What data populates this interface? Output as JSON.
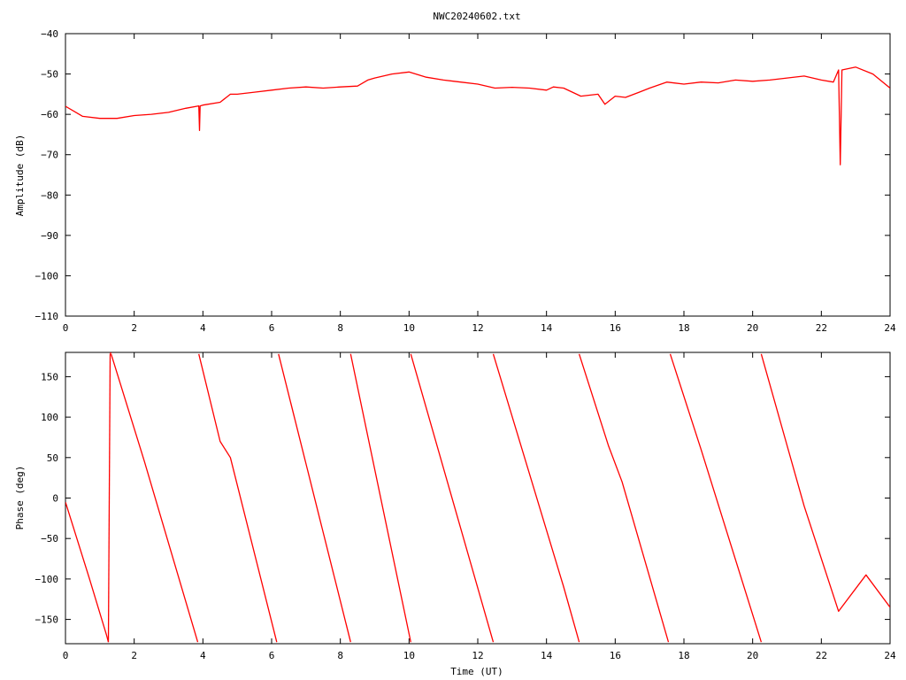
{
  "title": "NWC20240602.txt",
  "colors": {
    "series": "#ff0000",
    "axis": "#000000",
    "background": "#ffffff"
  },
  "chart_data": [
    {
      "type": "line",
      "ylabel": "Amplitude (dB)",
      "xlabel": "",
      "xlim": [
        0,
        24
      ],
      "ylim": [
        -110,
        -40
      ],
      "xticks": [
        0,
        2,
        4,
        6,
        8,
        10,
        12,
        14,
        16,
        18,
        20,
        22,
        24
      ],
      "yticks": [
        -110,
        -100,
        -90,
        -80,
        -70,
        -60,
        -50,
        -40
      ],
      "xtick_labels": [
        "0",
        "2",
        "4",
        "6",
        "8",
        "10",
        "12",
        "14",
        "16",
        "18",
        "20",
        "22",
        "24"
      ],
      "ytick_labels": [
        "−110",
        "−100",
        "−90",
        "−80",
        "−70",
        "−60",
        "−50",
        "−40"
      ],
      "grid": false,
      "series": [
        {
          "x": [
            0,
            0.5,
            1,
            1.5,
            2,
            2.5,
            3,
            3.5,
            3.88,
            3.9,
            3.92,
            4,
            4.5,
            4.8,
            5,
            5.5,
            6,
            6.5,
            7,
            7.5,
            8,
            8.5,
            8.8,
            9,
            9.5,
            10,
            10.5,
            11,
            11.5,
            12,
            12.5,
            13,
            13.5,
            14,
            14.2,
            14.5,
            15,
            15.5,
            15.7,
            16,
            16.3,
            16.7,
            17,
            17.5,
            18,
            18.5,
            19,
            19.5,
            20,
            20.5,
            21,
            21.5,
            22,
            22.35,
            22.5,
            22.55,
            22.6,
            23,
            23.5,
            24
          ],
          "y": [
            -58,
            -60.5,
            -61,
            -61,
            -60.3,
            -60,
            -59.5,
            -58.5,
            -57.9,
            -64,
            -57.9,
            -57.7,
            -57,
            -55,
            -55,
            -54.5,
            -54,
            -53.5,
            -53.2,
            -53.5,
            -53.2,
            -53,
            -51.5,
            -51,
            -50,
            -49.5,
            -50.8,
            -51.5,
            -52,
            -52.5,
            -53.5,
            -53.3,
            -53.5,
            -54,
            -53.2,
            -53.5,
            -55.5,
            -55,
            -57.5,
            -55.5,
            -55.8,
            -54.5,
            -53.5,
            -52,
            -52.5,
            -52,
            -52.2,
            -51.5,
            -51.8,
            -51.5,
            -51,
            -50.5,
            -51.5,
            -52,
            -49,
            -72.5,
            -49,
            -48.3,
            -50,
            -53.5
          ]
        }
      ]
    },
    {
      "type": "line",
      "ylabel": "Phase (deg)",
      "xlabel": "Time (UT)",
      "xlim": [
        0,
        24
      ],
      "ylim": [
        -180,
        180
      ],
      "xticks": [
        0,
        2,
        4,
        6,
        8,
        10,
        12,
        14,
        16,
        18,
        20,
        22,
        24
      ],
      "yticks": [
        -150,
        -100,
        -50,
        0,
        50,
        100,
        150
      ],
      "xtick_labels": [
        "0",
        "2",
        "4",
        "6",
        "8",
        "10",
        "12",
        "14",
        "16",
        "18",
        "20",
        "22",
        "24"
      ],
      "ytick_labels": [
        "−150",
        "−100",
        "−50",
        "0",
        "50",
        "100",
        "150"
      ],
      "grid": false,
      "series": [
        {
          "segments": [
            {
              "x": [
                0,
                0.7,
                1.2,
                1.25
              ],
              "y": [
                -5,
                -100,
                -170,
                -178
              ]
            },
            {
              "x": [
                1.25,
                1.3
              ],
              "y": [
                -178,
                178
              ]
            },
            {
              "x": [
                1.3,
                1.33
              ],
              "y": [
                178,
                180
              ]
            },
            {
              "x": [
                1.33,
                2.3,
                3.85
              ],
              "y": [
                178,
                45,
                -178
              ]
            },
            {
              "x": [
                3.88,
                4.5,
                4.8,
                6.15
              ],
              "y": [
                178,
                70,
                50,
                -178
              ]
            },
            {
              "x": [
                6.2,
                8.3
              ],
              "y": [
                178,
                -178
              ]
            },
            {
              "x": [
                8.3,
                10.05
              ],
              "y": [
                178,
                -178
              ]
            },
            {
              "x": [
                10.05,
                12.45
              ],
              "y": [
                178,
                -178
              ]
            },
            {
              "x": [
                12.45,
                14.5,
                14.9,
                14.95
              ],
              "y": [
                178,
                -110,
                -170,
                -178
              ]
            },
            {
              "x": [
                14.95,
                15.8,
                16.2,
                17.55
              ],
              "y": [
                178,
                65,
                20,
                -178
              ]
            },
            {
              "x": [
                17.6,
                18.5,
                20.25
              ],
              "y": [
                178,
                60,
                -178
              ]
            },
            {
              "x": [
                20.25,
                21.5,
                22.5,
                23.3,
                24
              ],
              "y": [
                178,
                -10,
                -140,
                -95,
                -135
              ]
            }
          ]
        }
      ]
    }
  ]
}
